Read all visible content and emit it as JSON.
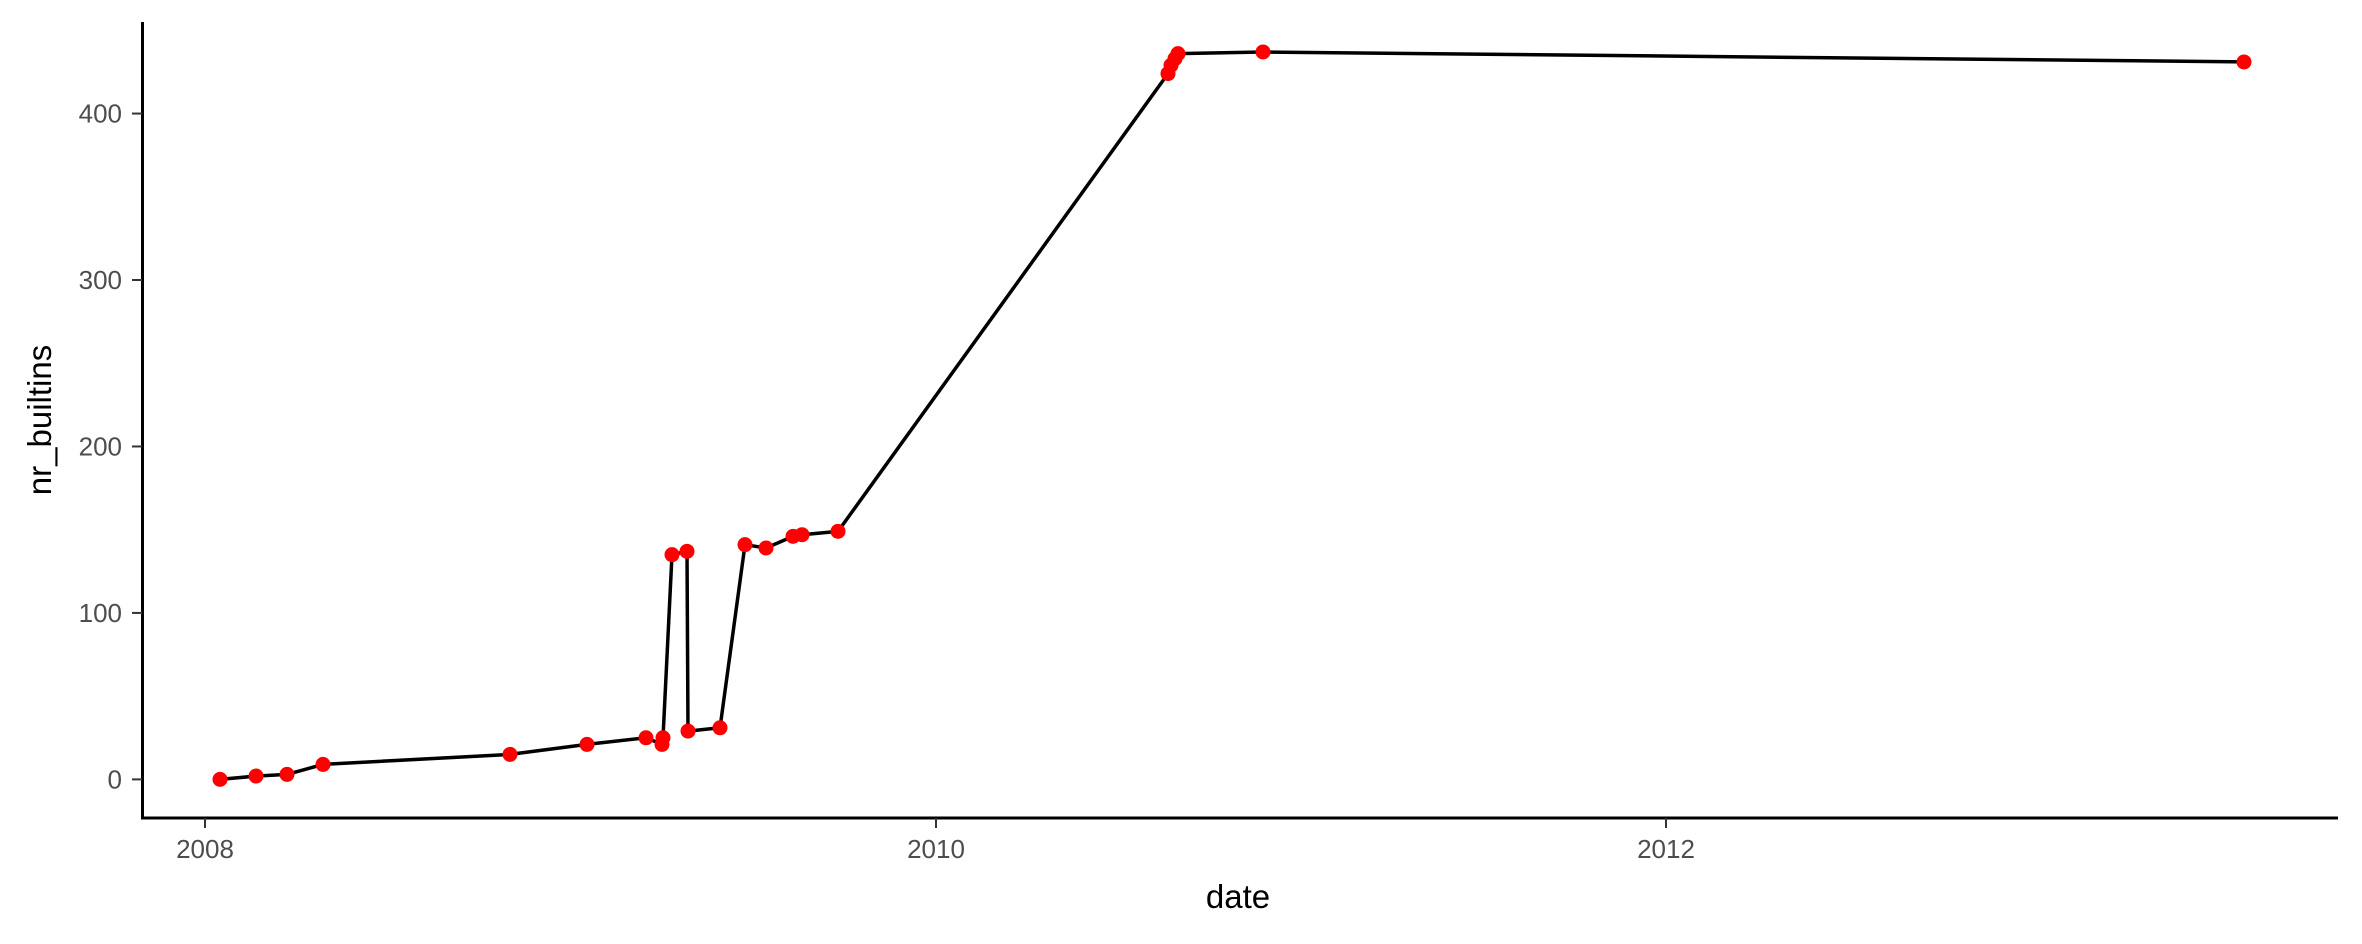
{
  "chart_data": {
    "type": "line",
    "title": "",
    "xlabel": "date",
    "ylabel": "nr_builtins",
    "x_axis_type": "date",
    "xlim": [
      "2007-10-31",
      "2013-11-01"
    ],
    "ylim": [
      -22,
      455
    ],
    "x_ticks": [
      {
        "value": "2008-01-01",
        "label": "2008"
      },
      {
        "value": "2010-01-01",
        "label": "2010"
      },
      {
        "value": "2012-01-01",
        "label": "2012"
      }
    ],
    "y_ticks": [
      {
        "value": 0,
        "label": "0"
      },
      {
        "value": 100,
        "label": "100"
      },
      {
        "value": 200,
        "label": "200"
      },
      {
        "value": 300,
        "label": "300"
      },
      {
        "value": 400,
        "label": "400"
      }
    ],
    "grid": false,
    "legend": "none",
    "line_color": "#000000",
    "point_color": "#ff0000",
    "series": [
      {
        "values": [
          {
            "x": "2008-01-16",
            "y": 0
          },
          {
            "x": "2008-02-21",
            "y": 2
          },
          {
            "x": "2008-03-23",
            "y": 3
          },
          {
            "x": "2008-04-28",
            "y": 9
          },
          {
            "x": "2008-11-01",
            "y": 15
          },
          {
            "x": "2009-01-17",
            "y": 21
          },
          {
            "x": "2009-03-17",
            "y": 25
          },
          {
            "x": "2009-04-02",
            "y": 21
          },
          {
            "x": "2009-04-03",
            "y": 25
          },
          {
            "x": "2009-04-12",
            "y": 135
          },
          {
            "x": "2009-04-27",
            "y": 137
          },
          {
            "x": "2009-04-28",
            "y": 29
          },
          {
            "x": "2009-05-30",
            "y": 31
          },
          {
            "x": "2009-06-24",
            "y": 141
          },
          {
            "x": "2009-07-15",
            "y": 139
          },
          {
            "x": "2009-08-11",
            "y": 146
          },
          {
            "x": "2009-08-20",
            "y": 147
          },
          {
            "x": "2009-09-25",
            "y": 149
          },
          {
            "x": "2010-08-21",
            "y": 424
          },
          {
            "x": "2010-08-24",
            "y": 429
          },
          {
            "x": "2010-08-28",
            "y": 433
          },
          {
            "x": "2010-08-31",
            "y": 436
          },
          {
            "x": "2010-11-24",
            "y": 437
          },
          {
            "x": "2013-08-01",
            "y": 431
          }
        ]
      }
    ]
  }
}
